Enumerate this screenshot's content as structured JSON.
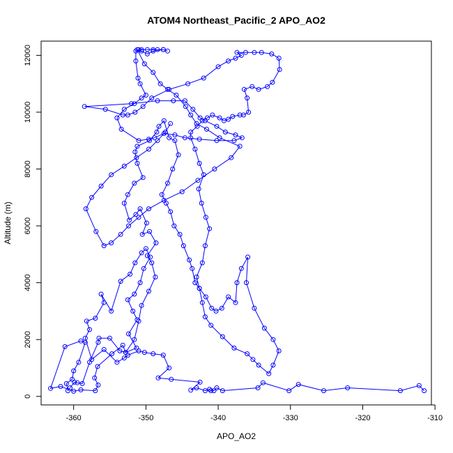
{
  "chart_data": {
    "type": "line",
    "title": "ATOM4 Northeast_Pacific_2 APO_AO2",
    "xlabel": "APO_AO2",
    "ylabel": "Altitude (m)",
    "xlim": [
      -364.5,
      -310.5
    ],
    "ylim": [
      -300,
      12500
    ],
    "x_ticks": [
      -360,
      -350,
      -340,
      -330,
      -320,
      -310
    ],
    "y_ticks": [
      0,
      2000,
      4000,
      6000,
      8000,
      10000,
      12000
    ],
    "x_tick_labels": [
      "-360",
      "-350",
      "-340",
      "-330",
      "-320",
      "-310"
    ],
    "y_tick_labels": [
      "0",
      "2000",
      "4000",
      "6000",
      "8000",
      "10000",
      "12000"
    ],
    "grid": false,
    "marker": "open-circle",
    "series": [
      {
        "color": "#0000ff",
        "points": [
          [
            -311.5,
            200
          ],
          [
            -312.2,
            380
          ],
          [
            -314.8,
            200
          ],
          [
            -322.1,
            300
          ],
          [
            -325.4,
            200
          ],
          [
            -328.9,
            420
          ],
          [
            -330.2,
            200
          ],
          [
            -333.8,
            480
          ],
          [
            -334.5,
            300
          ],
          [
            -339.4,
            200
          ],
          [
            -340.2,
            300
          ],
          [
            -340.6,
            200
          ],
          [
            -341.0,
            200
          ],
          [
            -341.2,
            250
          ],
          [
            -341.8,
            200
          ],
          [
            -343.0,
            300
          ],
          [
            -343.8,
            220
          ],
          [
            -342.5,
            500
          ],
          [
            -346.5,
            600
          ],
          [
            -348.3,
            650
          ],
          [
            -346.8,
            1000
          ],
          [
            -347.6,
            1450
          ],
          [
            -349.0,
            1500
          ],
          [
            -350.2,
            1550
          ],
          [
            -351.0,
            1600
          ],
          [
            -352.5,
            1450
          ],
          [
            -353.0,
            1350
          ],
          [
            -354.0,
            1200
          ],
          [
            -355.8,
            1650
          ],
          [
            -357.5,
            1300
          ],
          [
            -358.4,
            2050
          ],
          [
            -357.8,
            2350
          ],
          [
            -358.2,
            2650
          ],
          [
            -357.0,
            2750
          ],
          [
            -355.8,
            3300
          ],
          [
            -356.2,
            3600
          ],
          [
            -354.8,
            3000
          ],
          [
            -353.5,
            4050
          ],
          [
            -352.2,
            4300
          ],
          [
            -351.5,
            4700
          ],
          [
            -350.6,
            5050
          ],
          [
            -350.0,
            5200
          ],
          [
            -349.4,
            4900
          ],
          [
            -350.3,
            4500
          ],
          [
            -350.8,
            4000
          ],
          [
            -351.6,
            3600
          ],
          [
            -352.5,
            3400
          ],
          [
            -351.8,
            3000
          ],
          [
            -351.2,
            2700
          ],
          [
            -352.4,
            2200
          ],
          [
            -351.3,
            1700
          ],
          [
            -352.8,
            1550
          ],
          [
            -353.6,
            1600
          ],
          [
            -355.0,
            2050
          ],
          [
            -356.5,
            2050
          ],
          [
            -356.6,
            1900
          ],
          [
            -357.8,
            1200
          ],
          [
            -358.8,
            450
          ],
          [
            -359.5,
            480
          ],
          [
            -359.9,
            500
          ],
          [
            -360.5,
            300
          ],
          [
            -360.8,
            200
          ],
          [
            -361.0,
            450
          ],
          [
            -360.2,
            600
          ],
          [
            -360.0,
            900
          ],
          [
            -359.3,
            1200
          ],
          [
            -358.4,
            1900
          ],
          [
            -359.0,
            1950
          ],
          [
            -361.2,
            1750
          ],
          [
            -363.2,
            280
          ],
          [
            -361.8,
            350
          ],
          [
            -360.0,
            180
          ],
          [
            -359.0,
            230
          ],
          [
            -357.0,
            200
          ],
          [
            -356.6,
            400
          ],
          [
            -357.1,
            650
          ],
          [
            -356.7,
            1050
          ],
          [
            -354.7,
            1500
          ],
          [
            -353.2,
            1800
          ],
          [
            -352.8,
            1550
          ],
          [
            -351.6,
            2000
          ],
          [
            -351.0,
            2650
          ],
          [
            -350.6,
            3200
          ],
          [
            -349.6,
            3700
          ],
          [
            -348.7,
            4200
          ],
          [
            -349.2,
            4700
          ],
          [
            -349.8,
            4950
          ],
          [
            -348.6,
            5400
          ],
          [
            -349.5,
            5800
          ],
          [
            -350.5,
            5700
          ],
          [
            -349.9,
            6100
          ],
          [
            -350.8,
            6600
          ],
          [
            -351.4,
            6400
          ],
          [
            -352.3,
            6200
          ],
          [
            -353.0,
            6800
          ],
          [
            -352.5,
            7100
          ],
          [
            -351.6,
            7500
          ],
          [
            -350.4,
            7700
          ],
          [
            -351.2,
            8200
          ],
          [
            -351.5,
            8600
          ],
          [
            -351.2,
            8800
          ],
          [
            -349.5,
            9000
          ],
          [
            -348.5,
            9300
          ],
          [
            -348.2,
            9500
          ],
          [
            -347.5,
            9700
          ],
          [
            -346.8,
            9100
          ],
          [
            -346.0,
            9000
          ],
          [
            -345.5,
            8500
          ],
          [
            -346.3,
            8000
          ],
          [
            -347.0,
            7500
          ],
          [
            -347.8,
            7100
          ],
          [
            -347.2,
            6800
          ],
          [
            -346.6,
            6500
          ],
          [
            -346.1,
            6000
          ],
          [
            -345.3,
            5700
          ],
          [
            -344.8,
            5300
          ],
          [
            -344.0,
            4800
          ],
          [
            -343.6,
            4500
          ],
          [
            -343.2,
            4000
          ],
          [
            -342.6,
            3800
          ],
          [
            -341.7,
            3500
          ],
          [
            -340.9,
            3100
          ],
          [
            -340.3,
            3000
          ],
          [
            -339.5,
            3100
          ],
          [
            -338.6,
            3500
          ],
          [
            -337.6,
            3300
          ],
          [
            -337.4,
            4000
          ],
          [
            -336.8,
            4500
          ],
          [
            -335.9,
            4900
          ],
          [
            -336.1,
            4000
          ],
          [
            -335.0,
            3100
          ],
          [
            -333.6,
            2400
          ],
          [
            -332.4,
            2000
          ],
          [
            -331.6,
            1600
          ],
          [
            -332.4,
            1100
          ],
          [
            -333.0,
            800
          ],
          [
            -334.4,
            1100
          ],
          [
            -335.2,
            1300
          ],
          [
            -336.0,
            1500
          ],
          [
            -337.8,
            1700
          ],
          [
            -339.4,
            2100
          ],
          [
            -341.0,
            2500
          ],
          [
            -341.8,
            2800
          ],
          [
            -342.2,
            3300
          ],
          [
            -342.6,
            3800
          ],
          [
            -343.0,
            4200
          ],
          [
            -342.2,
            4700
          ],
          [
            -341.8,
            5300
          ],
          [
            -341.2,
            5900
          ],
          [
            -341.7,
            6300
          ],
          [
            -342.3,
            6800
          ],
          [
            -342.7,
            7300
          ],
          [
            -342.0,
            7800
          ],
          [
            -342.6,
            8200
          ],
          [
            -343.2,
            8700
          ],
          [
            -343.8,
            9100
          ],
          [
            -343.8,
            9300
          ],
          [
            -342.9,
            9500
          ],
          [
            -342.2,
            9700
          ],
          [
            -341.5,
            9800
          ],
          [
            -340.8,
            9900
          ],
          [
            -339.8,
            9800
          ],
          [
            -339.2,
            9700
          ],
          [
            -338.6,
            9750
          ],
          [
            -338.0,
            9850
          ],
          [
            -337.0,
            9900
          ],
          [
            -336.5,
            9900
          ],
          [
            -335.8,
            10000
          ],
          [
            -336.0,
            10500
          ],
          [
            -336.4,
            10800
          ],
          [
            -335.3,
            10900
          ],
          [
            -334.4,
            10800
          ],
          [
            -333.2,
            10900
          ],
          [
            -332.5,
            11050
          ],
          [
            -331.5,
            11500
          ],
          [
            -331.6,
            11900
          ],
          [
            -332.6,
            12050
          ],
          [
            -334.0,
            12100
          ],
          [
            -335.0,
            12100
          ],
          [
            -336.2,
            12100
          ],
          [
            -337.4,
            12100
          ],
          [
            -336.8,
            12000
          ],
          [
            -337.6,
            11900
          ],
          [
            -338.6,
            11800
          ],
          [
            -340.0,
            11600
          ],
          [
            -342.0,
            11200
          ],
          [
            -344.2,
            11000
          ],
          [
            -346.8,
            10800
          ],
          [
            -349.2,
            10500
          ],
          [
            -350.4,
            10200
          ],
          [
            -351.5,
            10000
          ],
          [
            -352.5,
            9900
          ],
          [
            -353.2,
            9900
          ],
          [
            -355.6,
            10100
          ],
          [
            -358.5,
            10200
          ],
          [
            -352.0,
            10300
          ],
          [
            -348.4,
            10400
          ],
          [
            -346.2,
            10400
          ],
          [
            -344.6,
            10400
          ],
          [
            -343.5,
            10100
          ],
          [
            -342.5,
            9800
          ],
          [
            -341.8,
            9700
          ],
          [
            -340.2,
            9500
          ],
          [
            -339.0,
            9300
          ],
          [
            -337.6,
            9200
          ],
          [
            -336.7,
            9100
          ],
          [
            -337.8,
            9000
          ],
          [
            -340.2,
            9000
          ],
          [
            -342.6,
            9050
          ],
          [
            -344.6,
            9100
          ],
          [
            -346.0,
            9200
          ],
          [
            -347.5,
            9250
          ],
          [
            -348.8,
            9100
          ],
          [
            -349.6,
            9050
          ],
          [
            -351.0,
            9000
          ],
          [
            -353.4,
            9400
          ],
          [
            -354.0,
            9800
          ],
          [
            -353.0,
            10100
          ],
          [
            -351.6,
            10300
          ],
          [
            -350.6,
            10500
          ],
          [
            -350.0,
            10600
          ],
          [
            -350.8,
            11000
          ],
          [
            -351.1,
            11200
          ],
          [
            -351.4,
            11800
          ],
          [
            -351.4,
            12150
          ],
          [
            -351.0,
            12200
          ],
          [
            -350.6,
            12200
          ],
          [
            -349.8,
            12200
          ],
          [
            -349.0,
            12200
          ],
          [
            -348.4,
            12200
          ],
          [
            -347.6,
            12200
          ],
          [
            -347.0,
            12150
          ],
          [
            -347.6,
            12200
          ],
          [
            -349.0,
            12150
          ],
          [
            -349.8,
            12050
          ],
          [
            -350.6,
            12150
          ],
          [
            -351.2,
            12200
          ],
          [
            -350.2,
            11700
          ],
          [
            -349.0,
            11400
          ],
          [
            -348.0,
            11000
          ],
          [
            -347.0,
            10800
          ],
          [
            -345.8,
            10600
          ],
          [
            -344.5,
            10200
          ],
          [
            -343.8,
            9900
          ],
          [
            -343.0,
            9600
          ],
          [
            -341.6,
            9400
          ],
          [
            -339.8,
            9100
          ],
          [
            -337.0,
            8800
          ],
          [
            -338.2,
            8400
          ],
          [
            -340.5,
            8000
          ],
          [
            -342.8,
            7600
          ],
          [
            -345.0,
            7200
          ],
          [
            -347.5,
            6900
          ],
          [
            -349.6,
            6600
          ],
          [
            -351.0,
            6300
          ],
          [
            -352.4,
            6000
          ],
          [
            -353.5,
            5700
          ],
          [
            -354.8,
            5400
          ],
          [
            -355.8,
            5300
          ],
          [
            -356.9,
            5800
          ],
          [
            -358.3,
            6600
          ],
          [
            -357.5,
            7000
          ],
          [
            -356.2,
            7400
          ],
          [
            -354.8,
            7800
          ],
          [
            -353.0,
            8100
          ],
          [
            -351.3,
            8400
          ],
          [
            -349.6,
            8700
          ],
          [
            -348.4,
            9000
          ],
          [
            -347.3,
            9300
          ],
          [
            -346.6,
            9600
          ]
        ]
      }
    ]
  }
}
